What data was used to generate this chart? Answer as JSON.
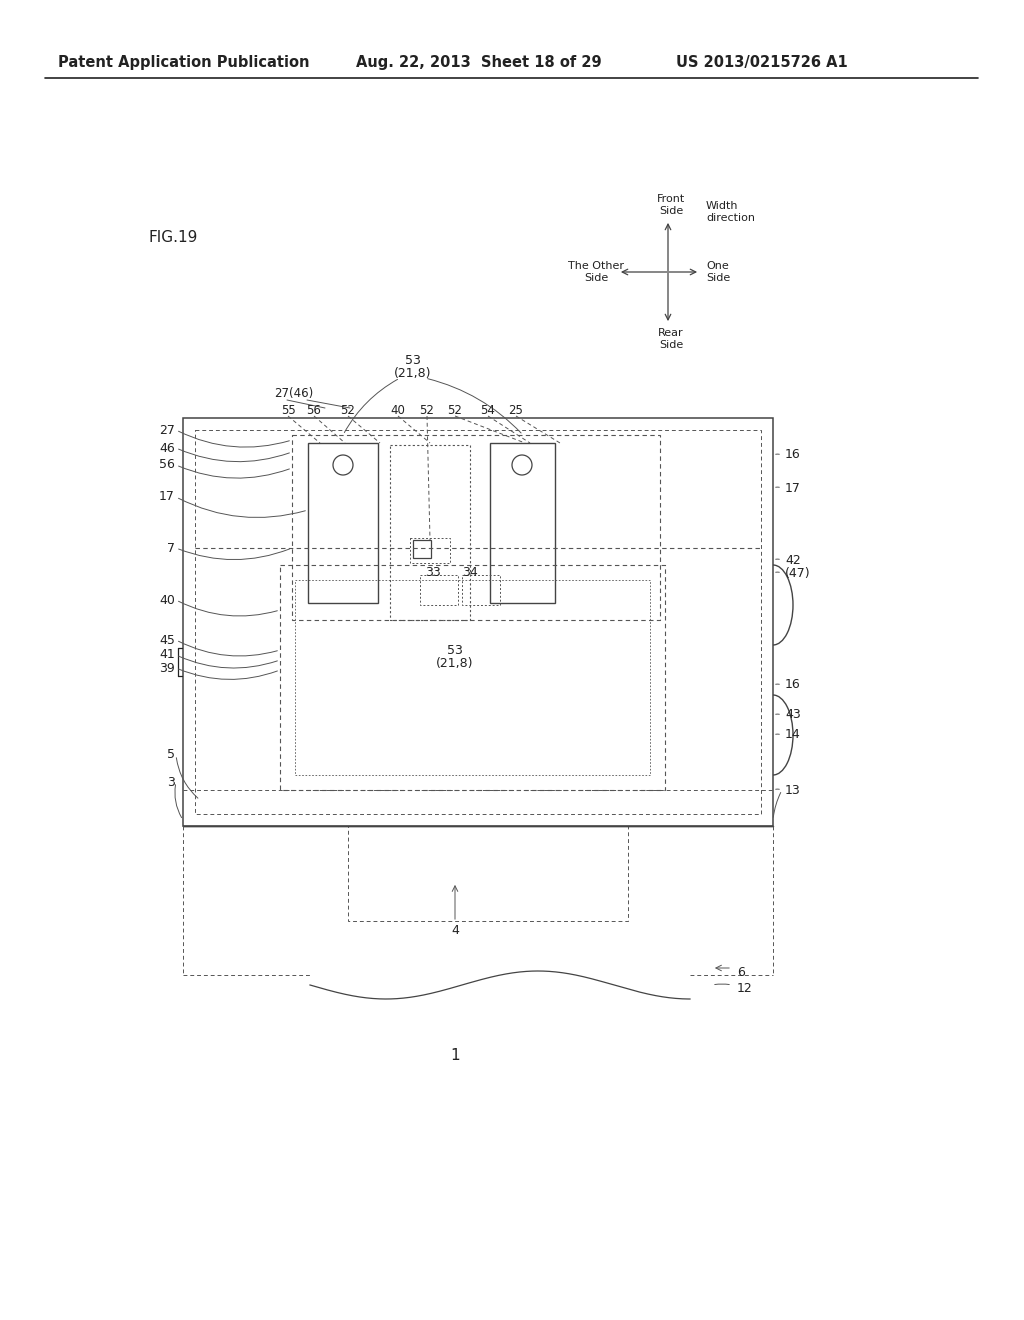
{
  "header_left": "Patent Application Publication",
  "header_mid": "Aug. 22, 2013  Sheet 18 of 29",
  "header_right": "US 2013/0215726 A1",
  "fig_label": "FIG.19",
  "figure_number": "1",
  "bg_color": "#ffffff",
  "text_color": "#222222",
  "line_color": "#444444",
  "dash_color": "#555555"
}
